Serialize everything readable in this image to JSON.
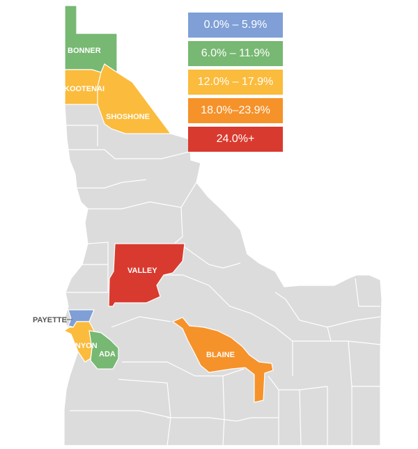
{
  "legend": {
    "items": [
      {
        "label": "0.0% – 5.9%",
        "color": "#7f9fd6"
      },
      {
        "label": "6.0% – 11.9%",
        "color": "#77b873"
      },
      {
        "label": "12.0% – 17.9%",
        "color": "#fbbb3c"
      },
      {
        "label": "18.0%–23.9%",
        "color": "#f6922a"
      },
      {
        "label": "24.0%+",
        "color": "#d93a2f"
      }
    ]
  },
  "map": {
    "base_color": "#dcdcdc",
    "counties": {
      "bonner": {
        "name": "BONNER",
        "color": "#77b873"
      },
      "kootenai": {
        "name": "KOOTENAI",
        "color": "#fbbb3c"
      },
      "shoshone": {
        "name": "SHOSHONE",
        "color": "#fbbb3c"
      },
      "valley": {
        "name": "VALLEY",
        "color": "#d93a2f"
      },
      "payette": {
        "name": "PAYETTE",
        "color": "#7f9fd6"
      },
      "canyon": {
        "name": "CANYON",
        "color": "#fbbb3c"
      },
      "ada": {
        "name": "ADA",
        "color": "#77b873"
      },
      "blaine": {
        "name": "BLAINE",
        "color": "#f6922a"
      }
    }
  }
}
